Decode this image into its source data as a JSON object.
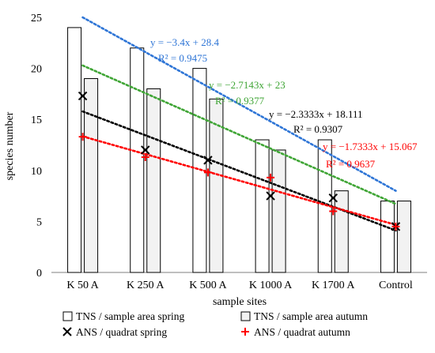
{
  "chart_data": {
    "type": "bar",
    "categories": [
      "K 50 A",
      "K 250 A",
      "K 500 A",
      "K 1000 A",
      "K 1700 A",
      "Control"
    ],
    "xlabel": "sample sites",
    "ylabel": "species number",
    "ylim": [
      0,
      25
    ],
    "yticks": [
      "0",
      "5",
      "10",
      "15",
      "20",
      "25"
    ],
    "grid": false,
    "legend_position": "bottom",
    "bar_series": [
      {
        "name": "TNS / sample area spring",
        "values": [
          24,
          22,
          20,
          13,
          13,
          7
        ],
        "fill": "#ffffff"
      },
      {
        "name": "TNS / sample area autumn",
        "values": [
          19,
          18,
          17,
          12,
          8,
          7
        ],
        "fill": "#f2f2f2"
      }
    ],
    "point_series": [
      {
        "name": "ANS / quadrat spring",
        "marker": "×",
        "color": "#000000",
        "values": [
          17.3,
          12.0,
          11.0,
          7.5,
          7.3,
          4.5
        ]
      },
      {
        "name": "ANS / quadrat autumn",
        "marker": "+",
        "color": "#ff0000",
        "values": [
          13.3,
          11.3,
          9.8,
          9.3,
          6.0,
          4.5
        ]
      }
    ],
    "trendlines": [
      {
        "equation": "y = −3.4x + 28.4",
        "r2": "R² = 0.9475",
        "slope": -3.4,
        "intercept": 28.4,
        "color": "#2e75d6"
      },
      {
        "equation": "y = −2.7143x + 23",
        "r2": "R² = 0.9377",
        "slope": -2.7143,
        "intercept": 23,
        "color": "#3fa535"
      },
      {
        "equation": "y = −2.3333x + 18.111",
        "r2": "R² = 0.9307",
        "slope": -2.3333,
        "intercept": 18.111,
        "color": "#000000"
      },
      {
        "equation": "y = −1.7333x + 15.067",
        "r2": "R² = 0.9637",
        "slope": -1.7333,
        "intercept": 15.067,
        "color": "#ff0000"
      }
    ]
  }
}
